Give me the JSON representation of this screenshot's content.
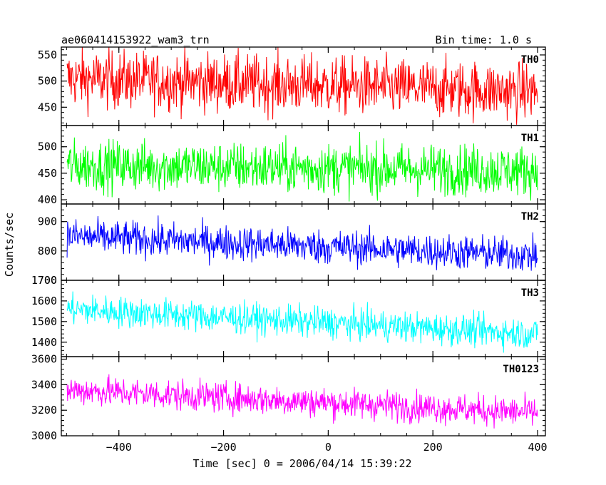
{
  "header": {
    "title": "ae060414153922_wam3_trn",
    "bin_time": "Bin time: 1.0 s"
  },
  "colors": {
    "TH0": "#ff0000",
    "TH1": "#00ff00",
    "TH2": "#0000ff",
    "TH3": "#00ffff",
    "TH0123": "#ff00ff",
    "axes": "#000000"
  },
  "chart_data": {
    "type": "line",
    "xlabel": "Time [sec] 0 = 2006/04/14 15:39:22",
    "ylabel": "Counts/sec",
    "xlim": [
      -510,
      415
    ],
    "x_ticks": [
      -400,
      -200,
      0,
      200,
      400
    ],
    "x_tick_labels": [
      "−400",
      "−200",
      "0",
      "200",
      "400"
    ],
    "x_range": [
      -499,
      400
    ],
    "x_step": 1,
    "grid": false,
    "panels": [
      {
        "name": "TH0",
        "ylim": [
          415,
          565
        ],
        "yticks": [
          450,
          500,
          550
        ],
        "start": 505,
        "end": 480,
        "noise": 28
      },
      {
        "name": "TH1",
        "ylim": [
          392,
          540
        ],
        "yticks": [
          400,
          450,
          500
        ],
        "start": 465,
        "end": 455,
        "noise": 24
      },
      {
        "name": "TH2",
        "ylim": [
          700,
          960
        ],
        "yticks": [
          700,
          800,
          900
        ],
        "start": 850,
        "end": 785,
        "noise": 30
      },
      {
        "name": "TH3",
        "ylim": [
          1330,
          1700
        ],
        "yticks": [
          1400,
          1500,
          1600,
          1700
        ],
        "start": 1560,
        "end": 1440,
        "noise": 38
      },
      {
        "name": "TH0123",
        "ylim": [
          3000,
          3620
        ],
        "yticks": [
          3000,
          3200,
          3400,
          3600
        ],
        "start": 3360,
        "end": 3180,
        "noise": 60
      }
    ]
  }
}
